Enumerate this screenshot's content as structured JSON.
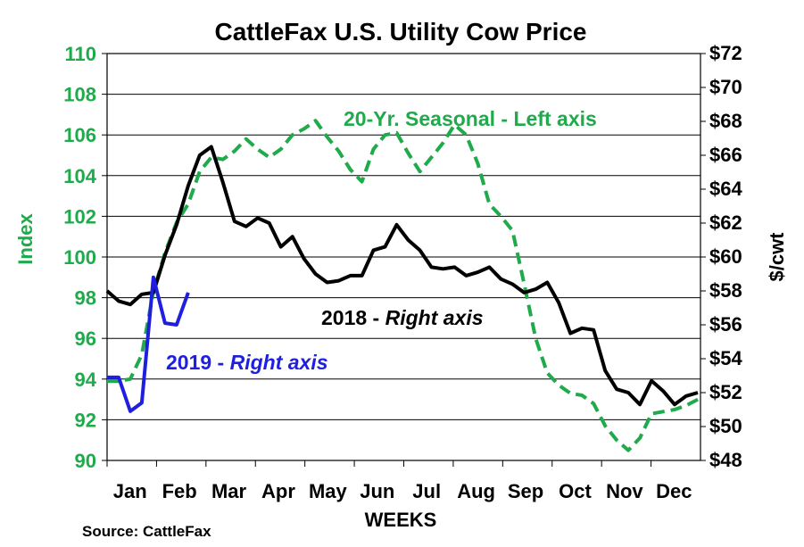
{
  "chart_data": {
    "type": "line",
    "title": "CattleFax U.S. Utility Cow Price",
    "xlabel": "WEEKS",
    "ylabel_left": "Index",
    "ylabel_right": "$/cwt",
    "source": "Source: CattleFax",
    "x_months": [
      "Jan",
      "Feb",
      "Mar",
      "Apr",
      "May",
      "Jun",
      "Jul",
      "Aug",
      "Sep",
      "Oct",
      "Nov",
      "Dec"
    ],
    "ylim_left": [
      90,
      110
    ],
    "yticks_left": [
      "90",
      "92",
      "94",
      "96",
      "98",
      "100",
      "102",
      "104",
      "106",
      "108",
      "110"
    ],
    "ylim_right": [
      48,
      72
    ],
    "yticks_right": [
      "$48",
      "$50",
      "$52",
      "$54",
      "$56",
      "$58",
      "$60",
      "$62",
      "$64",
      "$66",
      "$68",
      "$70",
      "$72"
    ],
    "grid": true,
    "annotations": {
      "seasonal": "20-Yr. Seasonal - Left axis",
      "y2018_a": "2018 - ",
      "y2018_b": "Right axis",
      "y2019_a": "2019 - ",
      "y2019_b": "Right axis"
    },
    "series": [
      {
        "name": "20-Yr. Seasonal",
        "axis": "left",
        "color": "#1faa4b",
        "style": "dashed",
        "x": [
          1,
          2,
          3,
          4,
          5,
          6,
          7,
          8,
          9,
          10,
          11,
          12,
          13,
          14,
          15,
          16,
          17,
          18,
          19,
          20,
          21,
          22,
          23,
          24,
          25,
          26,
          27,
          28,
          29,
          30,
          31,
          32,
          33,
          34,
          35,
          36,
          37,
          38,
          39,
          40,
          41,
          42,
          43,
          44,
          45,
          46,
          47,
          48,
          49,
          50,
          51,
          52
        ],
        "values": [
          93.9,
          93.9,
          94.0,
          95.2,
          98.3,
          100.2,
          101.7,
          102.6,
          104.2,
          104.9,
          104.8,
          105.2,
          105.8,
          105.3,
          104.9,
          105.3,
          106.0,
          106.3,
          106.7,
          105.9,
          105.2,
          104.3,
          103.7,
          105.3,
          106.0,
          106.1,
          105.1,
          104.2,
          104.9,
          105.6,
          106.5,
          106.0,
          104.6,
          102.6,
          102.0,
          101.3,
          98.7,
          96.0,
          94.3,
          93.7,
          93.3,
          93.2,
          92.8,
          91.7,
          91.0,
          90.5,
          91.1,
          92.3,
          92.4,
          92.5,
          92.7,
          93.0
        ]
      },
      {
        "name": "2018",
        "axis": "right",
        "color": "#000000",
        "style": "solid",
        "x": [
          1,
          2,
          3,
          4,
          5,
          6,
          7,
          8,
          9,
          10,
          11,
          12,
          13,
          14,
          15,
          16,
          17,
          18,
          19,
          20,
          21,
          22,
          23,
          24,
          25,
          26,
          27,
          28,
          29,
          30,
          31,
          32,
          33,
          34,
          35,
          36,
          37,
          38,
          39,
          40,
          41,
          42,
          43,
          44,
          45,
          46,
          47,
          48,
          49,
          50,
          51,
          52
        ],
        "values": [
          58.0,
          57.4,
          57.2,
          57.8,
          57.9,
          60.1,
          61.9,
          64.2,
          66.0,
          66.5,
          64.4,
          62.1,
          61.8,
          62.3,
          62.0,
          60.6,
          61.2,
          59.9,
          59.0,
          58.5,
          58.6,
          58.9,
          58.9,
          60.4,
          60.6,
          61.9,
          61.0,
          60.4,
          59.4,
          59.3,
          59.4,
          58.9,
          59.1,
          59.4,
          58.7,
          58.4,
          57.9,
          58.1,
          58.5,
          57.3,
          55.5,
          55.8,
          55.7,
          53.3,
          52.2,
          52.0,
          51.3,
          52.7,
          52.1,
          51.3,
          51.8,
          52.0
        ]
      },
      {
        "name": "2019",
        "axis": "right",
        "color": "#1f1fe0",
        "style": "solid",
        "x": [
          1,
          2,
          3,
          4,
          5,
          6,
          7,
          8
        ],
        "values": [
          52.9,
          52.9,
          50.9,
          51.4,
          58.8,
          56.1,
          56.0,
          57.9
        ]
      }
    ]
  }
}
